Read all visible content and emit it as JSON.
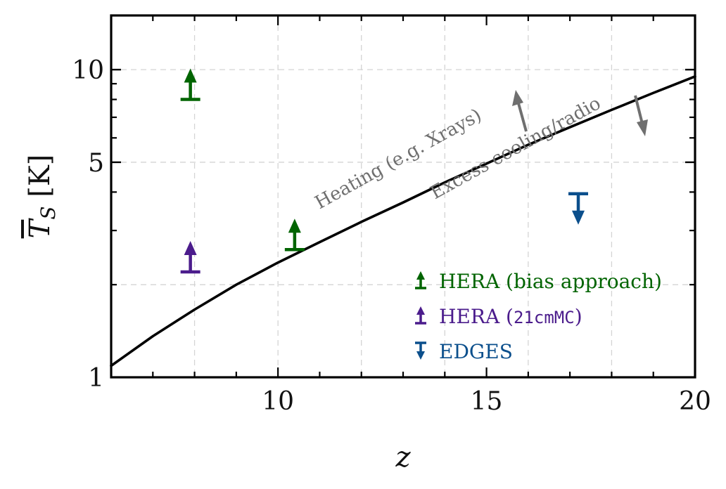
{
  "chart_data": {
    "type": "scatter",
    "title": "",
    "xlabel": "z",
    "ylabel": "T_S [K]",
    "xlim": [
      6,
      20
    ],
    "ylim": [
      1,
      15
    ],
    "y_scale": "log",
    "grid": true,
    "x_ticks": [
      10,
      15,
      20
    ],
    "x_tick_labels": [
      "10",
      "15",
      "20"
    ],
    "y_ticks": [
      1,
      5,
      10
    ],
    "y_tick_labels": [
      "1",
      "5",
      "10"
    ],
    "legend_position": "lower-right",
    "curve": {
      "x": [
        6.0,
        7.0,
        8.0,
        9.0,
        10.0,
        11.0,
        12.0,
        13.0,
        14.0,
        15.0,
        16.0,
        17.0,
        18.0,
        19.0,
        20.0
      ],
      "y": [
        1.09,
        1.36,
        1.66,
        2.0,
        2.36,
        2.75,
        3.2,
        3.7,
        4.3,
        4.95,
        5.7,
        6.5,
        7.4,
        8.4,
        9.5
      ]
    },
    "series": [
      {
        "name": "HERA (bias approach)",
        "label_parts": [
          "HERA (bias approach)"
        ],
        "color": "#006400",
        "marker": "lower-limit",
        "x": [
          7.9,
          10.4
        ],
        "y": [
          8.0,
          2.6
        ]
      },
      {
        "name": "HERA (21cmMC)",
        "label_parts": [
          "HERA (",
          "21cmMC",
          ")"
        ],
        "color": "#4b1c8c",
        "marker": "lower-limit",
        "x": [
          7.9
        ],
        "y": [
          2.2
        ]
      },
      {
        "name": "EDGES",
        "label_parts": [
          "EDGES"
        ],
        "color": "#0b4f8c",
        "marker": "upper-limit",
        "x": [
          17.2
        ],
        "y": [
          3.95
        ]
      }
    ],
    "annotations": [
      {
        "text": "Heating (e.g. Xrays)",
        "arrow": "up",
        "color": "#6f6f6f"
      },
      {
        "text": "Excess cooling/radio",
        "arrow": "down",
        "color": "#6f6f6f"
      }
    ]
  }
}
